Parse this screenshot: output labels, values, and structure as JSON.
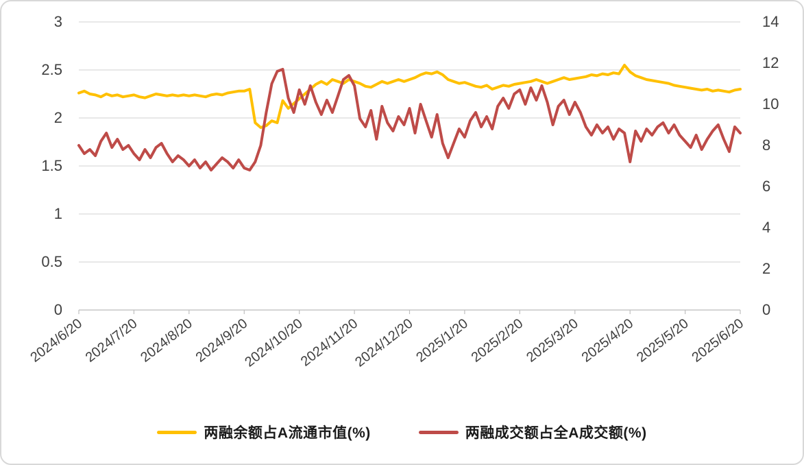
{
  "chart_data": {
    "type": "line",
    "title": "",
    "grid": true,
    "legend_position": "bottom",
    "x_tick_labels": [
      "2024/6/20",
      "2024/7/20",
      "2024/8/20",
      "2024/9/20",
      "2024/10/20",
      "2024/11/20",
      "2024/12/20",
      "2025/1/20",
      "2025/2/20",
      "2025/3/20",
      "2025/4/20",
      "2025/5/20",
      "2025/6/20"
    ],
    "left_axis": {
      "min": 0,
      "max": 3,
      "tick_values": [
        0,
        0.5,
        1,
        1.5,
        2,
        2.5,
        3
      ],
      "tick_labels": [
        "0",
        "0.5",
        "1",
        "1.5",
        "2",
        "2.5",
        "3"
      ]
    },
    "right_axis": {
      "min": 0,
      "max": 14,
      "tick_values": [
        0,
        2,
        4,
        6,
        8,
        10,
        12,
        14
      ],
      "tick_labels": [
        "0",
        "2",
        "4",
        "6",
        "8",
        "10",
        "12",
        "14"
      ]
    },
    "series": [
      {
        "name": "两融余额占A流通市值(%)",
        "axis": "left",
        "color": "#FFC000",
        "values": [
          2.26,
          2.28,
          2.25,
          2.24,
          2.22,
          2.25,
          2.23,
          2.24,
          2.22,
          2.23,
          2.24,
          2.22,
          2.21,
          2.23,
          2.25,
          2.24,
          2.23,
          2.24,
          2.23,
          2.24,
          2.23,
          2.24,
          2.23,
          2.22,
          2.24,
          2.25,
          2.24,
          2.26,
          2.27,
          2.28,
          2.28,
          2.3,
          1.95,
          1.9,
          1.92,
          1.97,
          1.95,
          2.18,
          2.1,
          2.15,
          2.2,
          2.25,
          2.3,
          2.35,
          2.38,
          2.35,
          2.4,
          2.38,
          2.36,
          2.4,
          2.38,
          2.36,
          2.33,
          2.32,
          2.35,
          2.38,
          2.36,
          2.38,
          2.4,
          2.38,
          2.4,
          2.42,
          2.45,
          2.47,
          2.46,
          2.48,
          2.45,
          2.4,
          2.38,
          2.36,
          2.37,
          2.35,
          2.33,
          2.32,
          2.34,
          2.3,
          2.32,
          2.34,
          2.33,
          2.35,
          2.36,
          2.37,
          2.38,
          2.4,
          2.38,
          2.36,
          2.38,
          2.4,
          2.42,
          2.4,
          2.41,
          2.42,
          2.43,
          2.45,
          2.44,
          2.46,
          2.45,
          2.47,
          2.46,
          2.55,
          2.48,
          2.44,
          2.42,
          2.4,
          2.39,
          2.38,
          2.37,
          2.36,
          2.34,
          2.33,
          2.32,
          2.31,
          2.3,
          2.29,
          2.3,
          2.28,
          2.29,
          2.28,
          2.27,
          2.29,
          2.3
        ]
      },
      {
        "name": "两融成交额占全A成交额(%)",
        "axis": "right",
        "color": "#BE4B48",
        "values": [
          8.0,
          7.6,
          7.8,
          7.5,
          8.2,
          8.6,
          7.9,
          8.3,
          7.8,
          8.0,
          7.6,
          7.3,
          7.8,
          7.4,
          7.9,
          8.1,
          7.6,
          7.2,
          7.5,
          7.3,
          7.0,
          7.3,
          6.9,
          7.2,
          6.8,
          7.1,
          7.4,
          7.2,
          6.9,
          7.3,
          6.9,
          6.8,
          7.2,
          8.0,
          9.6,
          11.0,
          11.6,
          11.7,
          10.3,
          9.6,
          10.7,
          10.0,
          10.9,
          10.1,
          9.5,
          10.2,
          9.6,
          10.4,
          11.2,
          11.4,
          10.9,
          9.3,
          8.9,
          9.7,
          8.3,
          9.9,
          9.1,
          8.7,
          9.4,
          9.0,
          9.8,
          8.6,
          10.0,
          9.2,
          8.4,
          9.5,
          8.1,
          7.4,
          8.1,
          8.8,
          8.4,
          9.2,
          9.6,
          8.9,
          9.4,
          8.8,
          9.9,
          10.3,
          9.8,
          10.5,
          10.7,
          10.0,
          10.8,
          10.2,
          10.9,
          10.1,
          9.0,
          9.9,
          10.2,
          9.5,
          10.1,
          9.6,
          8.9,
          8.5,
          9.0,
          8.6,
          8.9,
          8.3,
          8.8,
          8.6,
          7.2,
          8.7,
          8.2,
          8.8,
          8.5,
          8.9,
          9.1,
          8.6,
          9.0,
          8.5,
          8.2,
          7.9,
          8.5,
          7.8,
          8.3,
          8.7,
          9.0,
          8.3,
          7.7,
          8.9,
          8.6
        ]
      }
    ]
  }
}
